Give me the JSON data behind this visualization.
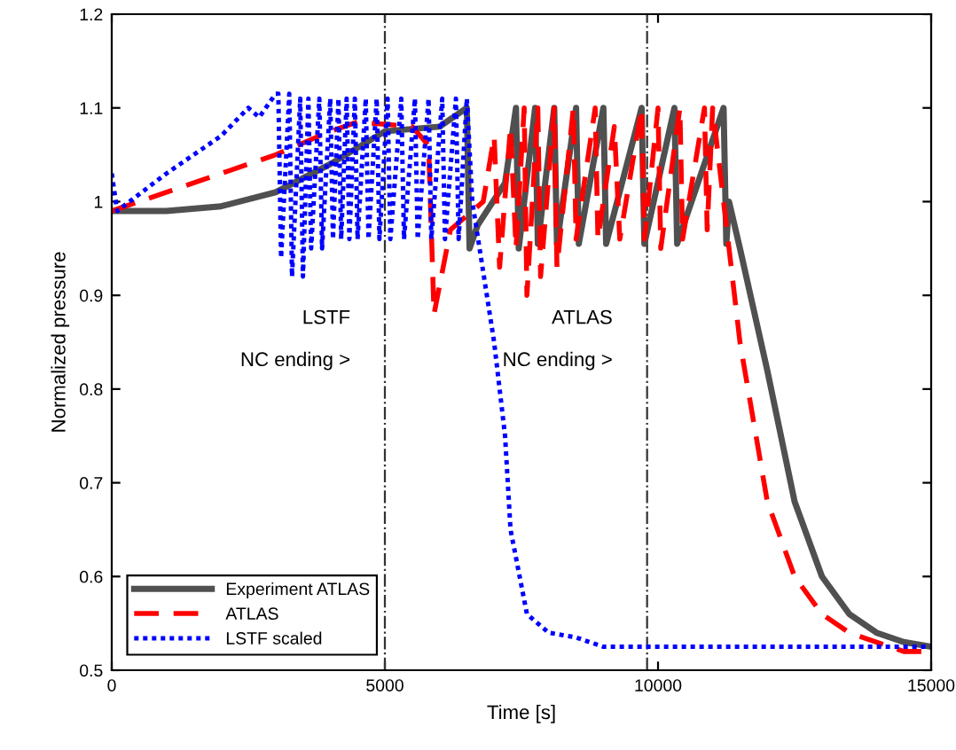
{
  "chart_data": {
    "type": "line",
    "xlabel": "Time [s]",
    "ylabel": "Normalized pressure",
    "xlim": [
      0,
      15000
    ],
    "xticks": [
      0,
      5000,
      10000,
      15000
    ],
    "ylim": [
      0.5,
      1.2
    ],
    "yticks": [
      0.5,
      0.6,
      0.7,
      0.8,
      0.9,
      1,
      1.1,
      1.2
    ],
    "grid": false,
    "legend": "bottom left",
    "marker": "none",
    "ref_lines": [
      {
        "axis": "x",
        "value": 5000,
        "color": "#333333",
        "line_style": "dashdot"
      },
      {
        "axis": "x",
        "value": 9800,
        "color": "#333333",
        "line_style": "dashdot"
      }
    ],
    "annotations": [
      "LSTF",
      "NC ending >",
      "ATLAS",
      "NC ending >"
    ],
    "series": [
      {
        "name": "Experiment ATLAS",
        "color": "#505050",
        "line_style": "solid",
        "x": [
          0,
          1000,
          2000,
          3000,
          4000,
          5000,
          6000,
          6500,
          6550,
          6700,
          7200,
          7400,
          7450,
          7750,
          7800,
          8100,
          8150,
          8500,
          8550,
          9000,
          9050,
          9700,
          9750,
          10300,
          10350,
          11200,
          11250,
          11300,
          11500,
          12000,
          12500,
          13000,
          13500,
          14000,
          14500,
          15000
        ],
        "values": [
          0.99,
          0.99,
          0.995,
          1.01,
          1.04,
          1.075,
          1.08,
          1.1,
          0.95,
          0.975,
          1.02,
          1.1,
          0.95,
          1.1,
          0.955,
          1.1,
          0.955,
          1.1,
          0.955,
          1.1,
          0.955,
          1.1,
          0.955,
          1.1,
          0.955,
          1.1,
          0.955,
          1.0,
          0.95,
          0.82,
          0.68,
          0.6,
          0.56,
          0.54,
          0.53,
          0.525
        ]
      },
      {
        "name": "ATLAS",
        "color": "#ff0000",
        "line_style": "dashed",
        "x": [
          0,
          1000,
          2000,
          3000,
          4000,
          4500,
          5500,
          5800,
          5900,
          6200,
          6800,
          7000,
          7100,
          7300,
          7400,
          7550,
          7600,
          7800,
          7850,
          8100,
          8150,
          8450,
          8500,
          8850,
          8900,
          9200,
          9300,
          9700,
          9750,
          10000,
          10050,
          10400,
          10450,
          10850,
          10900,
          11000,
          11200,
          11500,
          12000,
          12500,
          13000,
          13500,
          14000,
          14500,
          15000
        ],
        "values": [
          0.99,
          1.01,
          1.03,
          1.05,
          1.075,
          1.085,
          1.08,
          1.06,
          0.88,
          0.97,
          1.0,
          1.07,
          0.93,
          1.08,
          0.95,
          1.1,
          0.9,
          1.1,
          0.92,
          1.1,
          0.93,
          1.1,
          0.96,
          1.1,
          0.96,
          1.08,
          0.96,
          1.1,
          0.96,
          1.1,
          0.95,
          1.1,
          0.96,
          1.1,
          0.97,
          1.1,
          1.0,
          0.85,
          0.68,
          0.6,
          0.56,
          0.54,
          0.53,
          0.52,
          0.52
        ]
      },
      {
        "name": "LSTF scaled",
        "color": "#0000ff",
        "line_style": "dotted",
        "x": [
          0,
          100,
          1000,
          2000,
          2500,
          2700,
          3000,
          3050,
          3100,
          3250,
          3300,
          3450,
          3500,
          3600,
          3650,
          3800,
          3850,
          4000,
          4050,
          4150,
          4200,
          4300,
          4350,
          4450,
          4500,
          4650,
          4700,
          4850,
          4900,
          5050,
          5100,
          5300,
          5350,
          5550,
          5600,
          5800,
          5850,
          6050,
          6100,
          6300,
          6350,
          6500,
          6600,
          7000,
          7200,
          7300,
          7600,
          8000,
          8500,
          9000,
          10000,
          11000,
          12000,
          13000,
          14000,
          15000
        ],
        "values": [
          1.03,
          0.99,
          1.03,
          1.07,
          1.1,
          1.09,
          1.115,
          1.115,
          0.94,
          1.115,
          0.92,
          1.11,
          0.92,
          1.11,
          0.95,
          1.11,
          0.95,
          1.11,
          0.96,
          1.11,
          0.96,
          1.11,
          0.96,
          1.11,
          0.96,
          1.11,
          0.96,
          1.11,
          0.96,
          1.11,
          0.96,
          1.11,
          0.96,
          1.11,
          0.96,
          1.11,
          0.96,
          1.11,
          0.96,
          1.11,
          0.96,
          1.11,
          1.0,
          0.85,
          0.75,
          0.65,
          0.56,
          0.54,
          0.535,
          0.525,
          0.525,
          0.525,
          0.525,
          0.525,
          0.525,
          0.525
        ]
      }
    ]
  }
}
